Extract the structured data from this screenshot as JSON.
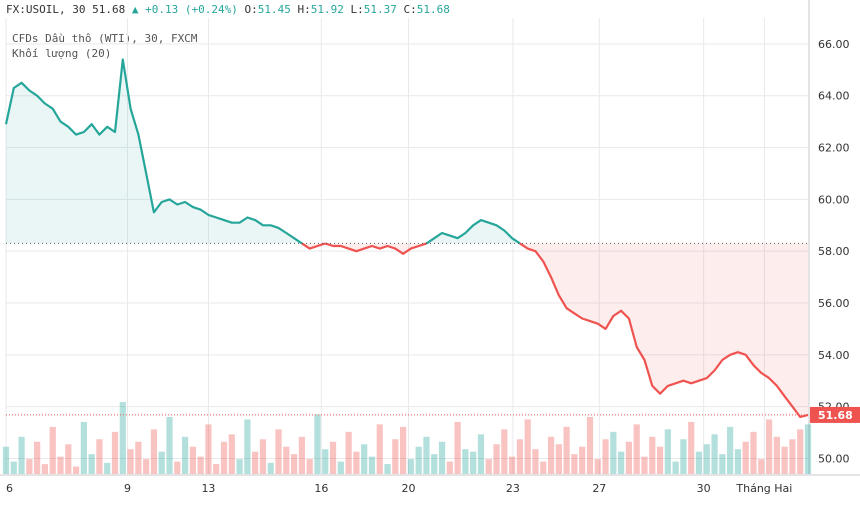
{
  "header": {
    "symbol_interval": "FX:USOIL, 30",
    "last": "51.68",
    "arrow": "▲",
    "change": "+0.13 (+0.24%)",
    "o_label": "O:",
    "o_val": "51.45",
    "h_label": "H:",
    "h_val": "51.92",
    "l_label": "L:",
    "l_val": "51.37",
    "c_label": "C:",
    "c_val": "51.68"
  },
  "study_line1": "CFDs Dầu thô (WTI), 30, FXCM",
  "study_line2": "Khối lượng (20)",
  "colors": {
    "up": "#26a69a",
    "down": "#ef5350",
    "grid": "#e9e9ec",
    "axis_text": "#333333",
    "prev_close_line": "#555555",
    "current_line": "#ef5350"
  },
  "chart_data": {
    "type": "line",
    "title": "",
    "xlabel": "",
    "ylabel": "",
    "ylim": [
      49.4,
      67.0
    ],
    "grid": true,
    "y_ticks": [
      "66.00",
      "64.00",
      "62.00",
      "60.00",
      "58.00",
      "56.00",
      "54.00",
      "52.00",
      "50.00"
    ],
    "x_tick_labels": [
      "6",
      "9",
      "13",
      "16",
      "20",
      "23",
      "27",
      "30",
      "Tháng Hai"
    ],
    "x_tick_index": [
      0,
      15.6,
      26,
      40.5,
      51.7,
      65.1,
      76.2,
      89.6,
      97.4
    ],
    "x_count": 104,
    "reference_value": 58.3,
    "last_price": 51.68,
    "last_price_label": "51.68",
    "series": [
      {
        "values": [
          62.9,
          64.3,
          64.5,
          64.2,
          64.0,
          63.7,
          63.5,
          63.0,
          62.8,
          62.5,
          62.6,
          62.9,
          62.5,
          62.8,
          62.6,
          65.4,
          63.5,
          62.5,
          61.0,
          59.5,
          59.9,
          60.0,
          59.8,
          59.9,
          59.7,
          59.6,
          59.4,
          59.3,
          59.2,
          59.1,
          59.1,
          59.3,
          59.2,
          59.0,
          59.0,
          58.9,
          58.7,
          58.5,
          58.3,
          58.1,
          58.2,
          58.3,
          58.2,
          58.2,
          58.1,
          58.0,
          58.1,
          58.2,
          58.1,
          58.2,
          58.1,
          57.9,
          58.1,
          58.2,
          58.3,
          58.5,
          58.7,
          58.6,
          58.5,
          58.7,
          59.0,
          59.2,
          59.1,
          59.0,
          58.8,
          58.5,
          58.3,
          58.1,
          58.0,
          57.6,
          57.0,
          56.3,
          55.8,
          55.6,
          55.4,
          55.3,
          55.2,
          55.0,
          55.5,
          55.7,
          55.4,
          54.3,
          53.8,
          52.8,
          52.5,
          52.8,
          52.9,
          53.0,
          52.9,
          53.0,
          53.1,
          53.4,
          53.8,
          54.0,
          54.1,
          54.0,
          53.6,
          53.3,
          53.1,
          52.8,
          52.4,
          52.0,
          51.6,
          51.68
        ]
      }
    ],
    "volume": {
      "ymax": 100,
      "values": [
        22,
        10,
        30,
        12,
        26,
        8,
        38,
        14,
        24,
        6,
        42,
        16,
        28,
        9,
        34,
        58,
        20,
        26,
        12,
        36,
        18,
        46,
        10,
        30,
        22,
        14,
        40,
        8,
        26,
        32,
        12,
        44,
        18,
        28,
        9,
        36,
        22,
        16,
        30,
        12,
        48,
        20,
        26,
        10,
        34,
        18,
        24,
        14,
        40,
        8,
        28,
        38,
        12,
        22,
        30,
        16,
        26,
        10,
        42,
        20,
        18,
        32,
        12,
        24,
        36,
        14,
        28,
        44,
        20,
        10,
        30,
        24,
        38,
        16,
        22,
        46,
        12,
        28,
        34,
        18,
        26,
        40,
        14,
        30,
        22,
        36,
        10,
        28,
        42,
        18,
        24,
        32,
        16,
        38,
        20,
        26,
        34,
        12,
        44,
        30,
        22,
        28,
        36,
        40
      ]
    }
  }
}
